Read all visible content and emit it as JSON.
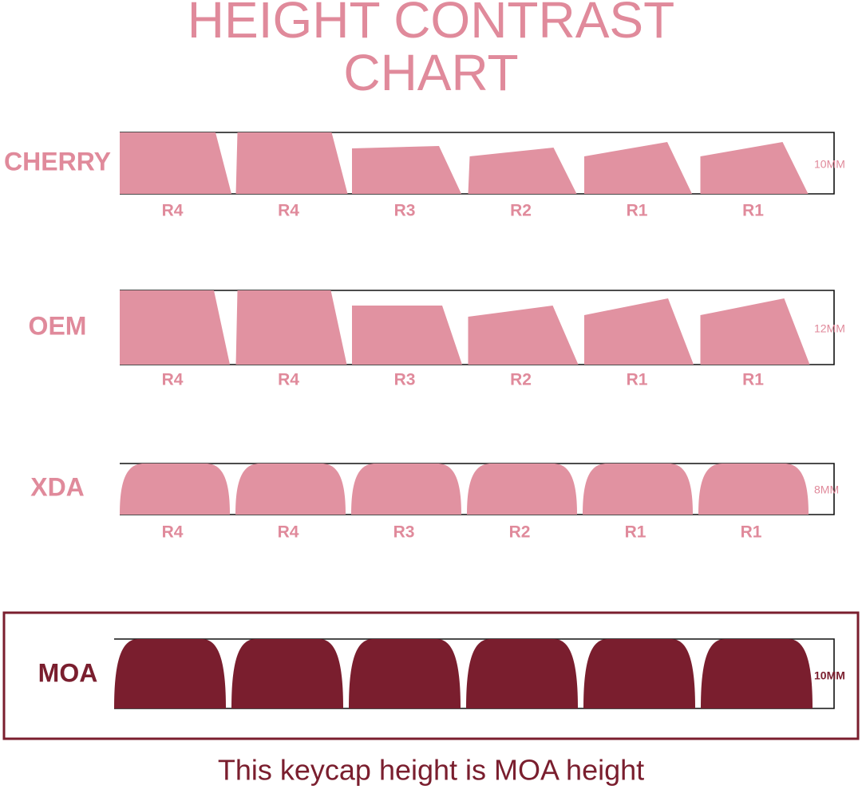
{
  "title_lines": [
    "HEIGHT CONTRAST",
    "CHART"
  ],
  "profiles": [
    {
      "name": "CHERRY",
      "height": "10MM",
      "rows": [
        "R4",
        "R4",
        "R3",
        "R2",
        "R1",
        "R1"
      ]
    },
    {
      "name": "OEM",
      "height": "12MM",
      "rows": [
        "R4",
        "R4",
        "R3",
        "R2",
        "R1",
        "R1"
      ]
    },
    {
      "name": "XDA",
      "height": "8MM",
      "rows": [
        "R4",
        "R4",
        "R3",
        "R2",
        "R1",
        "R1"
      ]
    },
    {
      "name": "MOA",
      "height": "10MM"
    }
  ],
  "footer": "This keycap height is MOA height"
}
